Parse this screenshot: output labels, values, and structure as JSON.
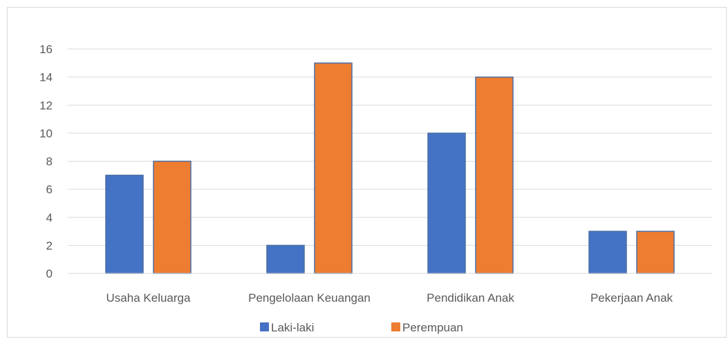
{
  "chart_data": {
    "type": "bar",
    "categories": [
      "Usaha Keluarga",
      "Pengelolaan Keuangan",
      "Pendidikan Anak",
      "Pekerjaan Anak"
    ],
    "series": [
      {
        "name": "Laki-laki",
        "values": [
          7,
          2,
          10,
          3
        ],
        "color": "#4472c4"
      },
      {
        "name": "Perempuan",
        "values": [
          8,
          15,
          14,
          3
        ],
        "color": "#ed7d31"
      }
    ],
    "yticks": [
      "0",
      "2",
      "4",
      "6",
      "8",
      "10",
      "12",
      "14",
      "16"
    ],
    "ylim": [
      0,
      16
    ],
    "grid": true,
    "legend_position": "bottom",
    "gridline_color": "#d9d9d9",
    "axis_color": "#d9d9d9",
    "bar_border_color": "#4a6fa5"
  }
}
